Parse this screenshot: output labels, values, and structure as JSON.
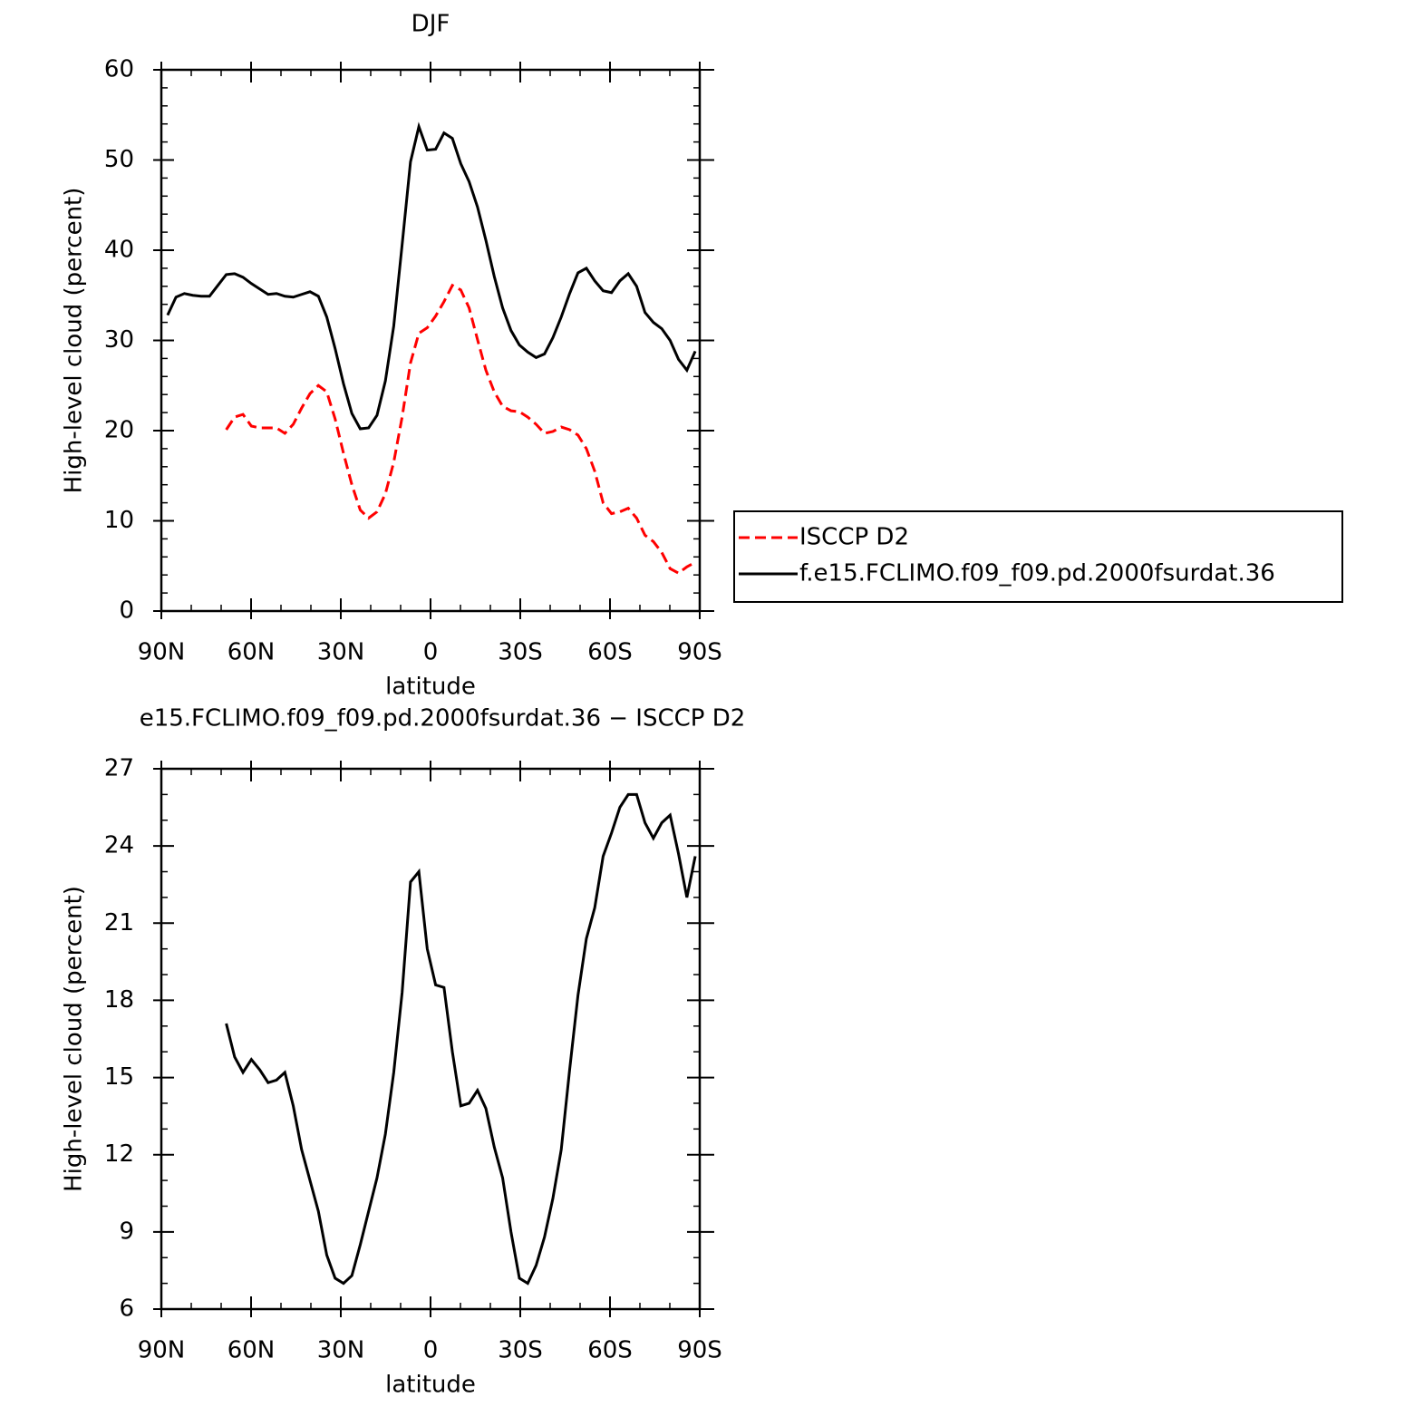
{
  "chart_data": [
    {
      "type": "line",
      "title": "DJF",
      "x_label": "latitude",
      "y_label": "High-level cloud (percent)",
      "xlim": [
        90,
        -90
      ],
      "xticks": [
        {
          "value": 90,
          "label": "90N"
        },
        {
          "value": 60,
          "label": "60N"
        },
        {
          "value": 30,
          "label": "30N"
        },
        0,
        {
          "value": -30,
          "label": "30S"
        },
        {
          "value": -60,
          "label": "60S"
        },
        {
          "value": -90,
          "label": "90S"
        }
      ],
      "xminorticks": [
        80,
        70,
        50,
        40,
        20,
        10,
        -10,
        -20,
        -40,
        -50,
        -70,
        -80
      ],
      "ylim": [
        0,
        60
      ],
      "yticks": [
        0,
        10,
        20,
        30,
        40,
        50,
        60
      ],
      "yminorticks": [
        2,
        4,
        6,
        8,
        12,
        14,
        16,
        18,
        22,
        24,
        26,
        28,
        32,
        34,
        36,
        38,
        42,
        44,
        46,
        48,
        52,
        54,
        56,
        58
      ],
      "legend": "right",
      "x": [
        87.9,
        85.1,
        82.3,
        79.5,
        76.7,
        73.9,
        71.1,
        68.3,
        65.5,
        62.7,
        59.9,
        57.1,
        54.3,
        51.5,
        48.7,
        45.9,
        43.1,
        40.3,
        37.5,
        34.7,
        31.9,
        29.1,
        26.3,
        23.5,
        20.7,
        17.9,
        15.1,
        12.3,
        9.5,
        6.7,
        3.9,
        1.1,
        -1.7,
        -4.5,
        -7.3,
        -10.1,
        -12.9,
        -15.7,
        -18.5,
        -21.3,
        -24.1,
        -26.9,
        -29.7,
        -32.5,
        -35.3,
        -38.1,
        -40.9,
        -43.7,
        -46.5,
        -49.3,
        -52.1,
        -54.9,
        -57.7,
        -60.5,
        -63.3,
        -66.1,
        -68.9,
        -71.7,
        -74.5,
        -77.3,
        -80.1,
        -82.9,
        -85.7,
        -88.5
      ],
      "series": [
        {
          "name": "ISCCP D2",
          "color": "#ff0000",
          "linestyle": "dashed",
          "values": [
            null,
            null,
            null,
            null,
            null,
            null,
            null,
            20.1,
            21.5,
            21.8,
            20.5,
            20.3,
            20.3,
            20.3,
            19.7,
            20.7,
            22.5,
            24.1,
            25.0,
            24.3,
            21.3,
            17.5,
            14.0,
            11.2,
            10.3,
            11.0,
            13.0,
            16.5,
            21.5,
            27.5,
            30.8,
            31.4,
            32.7,
            34.3,
            36.1,
            35.6,
            33.6,
            30.1,
            26.7,
            24.3,
            22.7,
            22.2,
            22.1,
            21.5,
            20.7,
            19.7,
            19.9,
            20.4,
            20.1,
            19.5,
            18.0,
            15.5,
            12.0,
            10.8,
            11.0,
            11.4,
            10.3,
            8.4,
            7.7,
            6.5,
            4.7,
            4.2,
            4.9,
            5.4
          ]
        },
        {
          "name": "f.e15.FCLIMO.f09_f09.pd.2000fsurdat.36",
          "color": "#000000",
          "linestyle": "solid",
          "values": [
            32.8,
            34.8,
            35.2,
            35.0,
            34.9,
            34.9,
            36.1,
            37.3,
            37.4,
            37.0,
            36.3,
            35.7,
            35.1,
            35.2,
            34.9,
            34.8,
            35.1,
            35.4,
            34.9,
            32.6,
            29.1,
            25.2,
            21.9,
            20.2,
            20.3,
            21.7,
            25.5,
            31.6,
            40.6,
            49.8,
            53.7,
            51.1,
            51.2,
            53.0,
            52.4,
            49.6,
            47.6,
            44.8,
            41.1,
            37.1,
            33.6,
            31.1,
            29.5,
            28.7,
            28.1,
            28.5,
            30.3,
            32.6,
            35.2,
            37.5,
            38.0,
            36.6,
            35.5,
            35.3,
            36.6,
            37.4,
            36.0,
            33.1,
            32.0,
            31.3,
            30.0,
            27.9,
            26.7,
            28.8
          ]
        }
      ]
    },
    {
      "type": "line",
      "title": "e15.FCLIMO.f09_f09.pd.2000fsurdat.36 − ISCCP D2",
      "x_label": "latitude",
      "y_label": "High-level cloud (percent)",
      "xlim": [
        90,
        -90
      ],
      "xticks": [
        {
          "value": 90,
          "label": "90N"
        },
        {
          "value": 60,
          "label": "60N"
        },
        {
          "value": 30,
          "label": "30N"
        },
        0,
        {
          "value": -30,
          "label": "30S"
        },
        {
          "value": -60,
          "label": "60S"
        },
        {
          "value": -90,
          "label": "90S"
        }
      ],
      "xminorticks": [
        80,
        70,
        50,
        40,
        20,
        10,
        -10,
        -20,
        -40,
        -50,
        -70,
        -80
      ],
      "ylim": [
        6,
        27
      ],
      "yticks": [
        6,
        9,
        12,
        15,
        18,
        21,
        24,
        27
      ],
      "yminorticks": [
        7,
        8,
        10,
        11,
        13,
        14,
        16,
        17,
        19,
        20,
        22,
        23,
        25,
        26
      ],
      "color": "#000000",
      "x": [
        68.3,
        65.5,
        62.7,
        59.9,
        57.1,
        54.3,
        51.5,
        48.7,
        45.9,
        43.1,
        40.3,
        37.5,
        34.7,
        31.9,
        29.1,
        26.3,
        23.5,
        20.7,
        17.9,
        15.1,
        12.3,
        9.5,
        6.7,
        3.9,
        1.1,
        -1.7,
        -4.5,
        -7.3,
        -10.1,
        -12.9,
        -15.7,
        -18.5,
        -21.3,
        -24.1,
        -26.9,
        -29.7,
        -32.5,
        -35.3,
        -38.1,
        -40.9,
        -43.7,
        -46.5,
        -49.3,
        -52.1,
        -54.9,
        -57.7,
        -60.5,
        -63.3,
        -66.1,
        -68.9,
        -71.7,
        -74.5,
        -77.3,
        -80.1,
        -82.9,
        -85.7,
        -88.5
      ],
      "values": [
        17.1,
        15.8,
        15.2,
        15.7,
        15.3,
        14.8,
        14.9,
        15.2,
        13.9,
        12.2,
        11.0,
        9.8,
        8.1,
        7.2,
        7.0,
        7.3,
        8.5,
        9.8,
        11.1,
        12.8,
        15.2,
        18.3,
        22.6,
        23.0,
        20.0,
        18.6,
        18.5,
        16.0,
        13.9,
        14.0,
        14.5,
        13.8,
        12.3,
        11.1,
        9.0,
        7.2,
        7.0,
        7.7,
        8.8,
        10.3,
        12.2,
        15.3,
        18.2,
        20.4,
        21.6,
        23.6,
        24.5,
        25.5,
        26.0,
        26.0,
        24.9,
        24.3,
        24.9,
        25.2,
        23.7,
        22.0,
        23.6
      ]
    }
  ]
}
